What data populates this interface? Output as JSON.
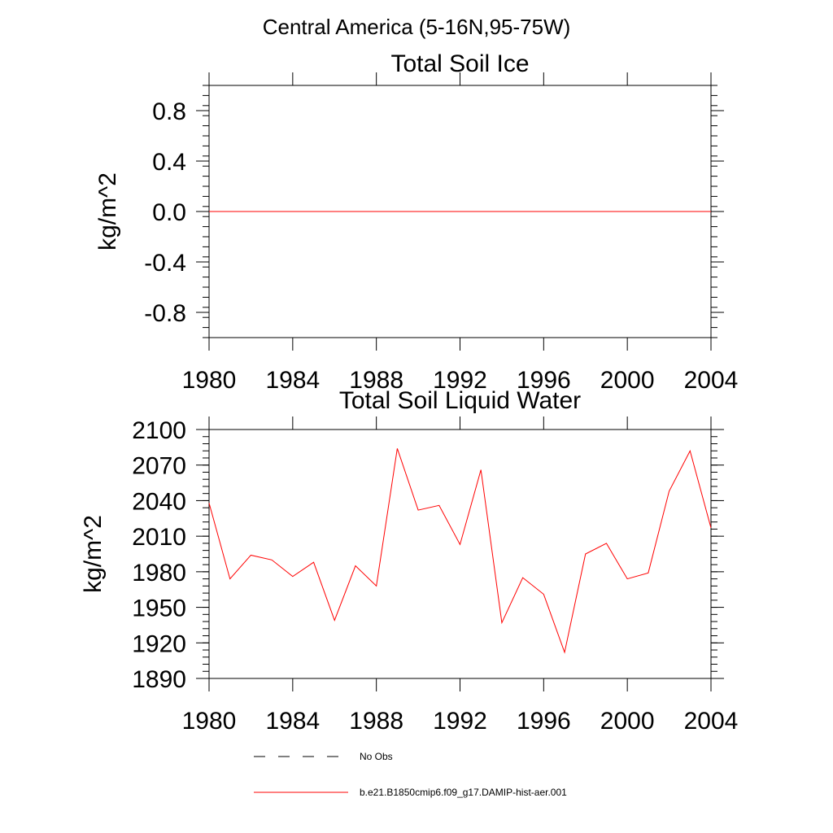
{
  "figure_title": "Central America (5-16N,95-75W)",
  "legend": {
    "entries": [
      {
        "label": "No Obs",
        "style": "dashed",
        "color": "#000000"
      },
      {
        "label": "b.e21.B1850cmip6.f09_g17.DAMIP-hist-aer.001",
        "style": "solid",
        "color": "#ff0000"
      }
    ]
  },
  "chart_data": [
    {
      "type": "line",
      "title": "Total Soil Ice",
      "ylabel": "kg/m^2",
      "xlabel": "",
      "xlim": [
        1980,
        2004
      ],
      "ylim": [
        -1.0,
        1.0
      ],
      "xticks": [
        1980,
        1984,
        1988,
        1992,
        1996,
        2000,
        2004
      ],
      "yticks": [
        0.8,
        0.4,
        0.0,
        -0.4,
        -0.8
      ],
      "ytick_labels": [
        "0.8",
        "0.4",
        "0.0",
        "-0.4",
        "-0.8"
      ],
      "x": [
        1980,
        1981,
        1982,
        1983,
        1984,
        1985,
        1986,
        1987,
        1988,
        1989,
        1990,
        1991,
        1992,
        1993,
        1994,
        1995,
        1996,
        1997,
        1998,
        1999,
        2000,
        2001,
        2002,
        2003,
        2004
      ],
      "series": [
        {
          "color": "#ff0000",
          "values": [
            0,
            0,
            0,
            0,
            0,
            0,
            0,
            0,
            0,
            0,
            0,
            0,
            0,
            0,
            0,
            0,
            0,
            0,
            0,
            0,
            0,
            0,
            0,
            0,
            0
          ]
        }
      ]
    },
    {
      "type": "line",
      "title": "Total Soil Liquid Water",
      "ylabel": "kg/m^2",
      "xlabel": "",
      "xlim": [
        1980,
        2004
      ],
      "ylim": [
        1890,
        2100
      ],
      "xticks": [
        1980,
        1984,
        1988,
        1992,
        1996,
        2000,
        2004
      ],
      "yticks": [
        2100,
        2070,
        2040,
        2010,
        1980,
        1950,
        1920,
        1890
      ],
      "ytick_labels": [
        "2100",
        "2070",
        "2040",
        "2010",
        "1980",
        "1950",
        "1920",
        "1890"
      ],
      "x": [
        1980,
        1981,
        1982,
        1983,
        1984,
        1985,
        1986,
        1987,
        1988,
        1989,
        1990,
        1991,
        1992,
        1993,
        1994,
        1995,
        1996,
        1997,
        1998,
        1999,
        2000,
        2001,
        2002,
        2003,
        2004
      ],
      "series": [
        {
          "color": "#ff0000",
          "values": [
            2038,
            1974,
            1994,
            1990,
            1976,
            1988,
            1939,
            1985,
            1968,
            2084,
            2032,
            2036,
            2003,
            2066,
            1937,
            1975,
            1961,
            1912,
            1995,
            2004,
            1974,
            1979,
            2048,
            2082,
            2017
          ]
        }
      ]
    }
  ]
}
